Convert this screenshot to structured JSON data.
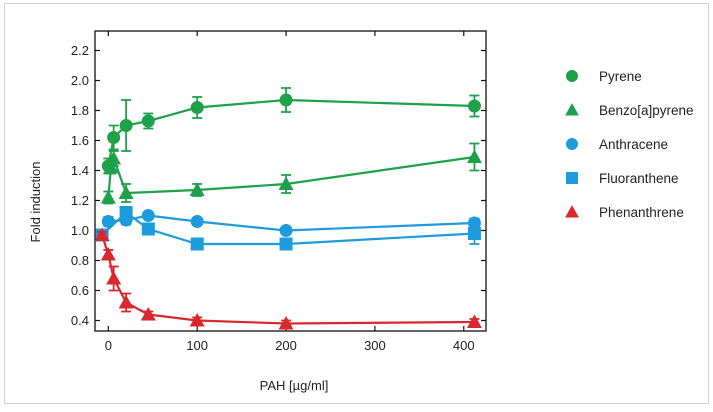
{
  "chart_data": {
    "type": "line",
    "xlabel": "PAH [µg/ml]",
    "ylabel": "Fold induction",
    "xlim": [
      -15,
      425
    ],
    "ylim": [
      0.33,
      2.33
    ],
    "xticks": [
      0,
      100,
      200,
      300,
      400
    ],
    "yticks": [
      0.4,
      0.6,
      0.8,
      1.0,
      1.2,
      1.4,
      1.6,
      1.8,
      2.0,
      2.2
    ],
    "xtick_labels": [
      "0",
      "100",
      "200",
      "300",
      "400"
    ],
    "ytick_labels": [
      "0.4",
      "0.6",
      "0.8",
      "1.0",
      "1.2",
      "1.4",
      "1.6",
      "1.8",
      "2.0",
      "2.2"
    ],
    "grid": false,
    "legend_position": "right",
    "series": [
      {
        "name": "Pyrene",
        "color": "#1fa04b",
        "marker": "circle",
        "points": [
          {
            "x": 0,
            "y": 1.43,
            "err": 0.05
          },
          {
            "x": 6,
            "y": 1.62,
            "err": 0.08
          },
          {
            "x": 20,
            "y": 1.7,
            "err": 0.17
          },
          {
            "x": 45,
            "y": 1.73,
            "err": 0.05
          },
          {
            "x": 100,
            "y": 1.82,
            "err": 0.07
          },
          {
            "x": 200,
            "y": 1.87,
            "err": 0.08
          },
          {
            "x": 412,
            "y": 1.83,
            "err": 0.07
          }
        ]
      },
      {
        "name": "Benzo[a]pyrene",
        "color": "#1fa04b",
        "marker": "triangle",
        "points": [
          {
            "x": 0,
            "y": 1.22,
            "err": 0.04
          },
          {
            "x": 3,
            "y": 1.42,
            "err": 0.04
          },
          {
            "x": 6,
            "y": 1.48,
            "err": 0.05
          },
          {
            "x": 20,
            "y": 1.25,
            "err": 0.06
          },
          {
            "x": 100,
            "y": 1.27,
            "err": 0.04
          },
          {
            "x": 200,
            "y": 1.31,
            "err": 0.06
          },
          {
            "x": 412,
            "y": 1.49,
            "err": 0.09
          }
        ]
      },
      {
        "name": "Anthracene",
        "color": "#1e9bdc",
        "marker": "circle",
        "points": [
          {
            "x": 0,
            "y": 1.06,
            "err": 0.03
          },
          {
            "x": 20,
            "y": 1.07,
            "err": 0.03
          },
          {
            "x": 45,
            "y": 1.1,
            "err": 0.02
          },
          {
            "x": 100,
            "y": 1.06,
            "err": 0.02
          },
          {
            "x": 200,
            "y": 1.0,
            "err": 0.02
          },
          {
            "x": 412,
            "y": 1.05,
            "err": 0.03
          }
        ]
      },
      {
        "name": "Fluoranthene",
        "color": "#1e9bdc",
        "marker": "square",
        "points": [
          {
            "x": -7,
            "y": 0.97,
            "err": 0.02
          },
          {
            "x": 20,
            "y": 1.12,
            "err": 0.03
          },
          {
            "x": 45,
            "y": 1.01,
            "err": 0.03
          },
          {
            "x": 100,
            "y": 0.91,
            "err": 0.03
          },
          {
            "x": 200,
            "y": 0.91,
            "err": 0.02
          },
          {
            "x": 412,
            "y": 0.98,
            "err": 0.07
          }
        ]
      },
      {
        "name": "Phenanthrene",
        "color": "#d9272e",
        "marker": "triangle",
        "points": [
          {
            "x": -7,
            "y": 0.97,
            "err": 0.02
          },
          {
            "x": 0,
            "y": 0.84,
            "err": 0.03
          },
          {
            "x": 6,
            "y": 0.68,
            "err": 0.08
          },
          {
            "x": 20,
            "y": 0.52,
            "err": 0.06
          },
          {
            "x": 45,
            "y": 0.44,
            "err": 0.02
          },
          {
            "x": 100,
            "y": 0.4,
            "err": 0.02
          },
          {
            "x": 200,
            "y": 0.38,
            "err": 0.02
          },
          {
            "x": 412,
            "y": 0.39,
            "err": 0.02
          }
        ]
      }
    ]
  }
}
